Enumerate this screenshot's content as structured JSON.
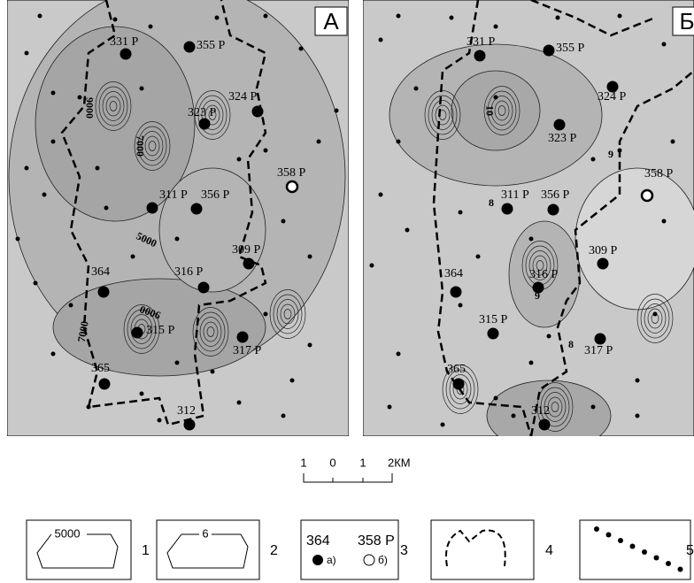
{
  "panels": [
    {
      "letter": "А",
      "wells": [
        "331 P",
        "355 P",
        "324 P",
        "323 P",
        "358 P",
        "311 P",
        "356 P",
        "309 P",
        "364",
        "316 P",
        "315 P",
        "317 P",
        "365",
        "312"
      ],
      "contour_labels": [
        "9000",
        "7000",
        "5000",
        "9000",
        "7000"
      ]
    },
    {
      "letter": "Б",
      "wells": [
        "331 P",
        "355 P",
        "324 P",
        "323 P",
        "358 P",
        "311 P",
        "356 P",
        "309 P",
        "364",
        "316 P",
        "315 P",
        "317 P",
        "365",
        "312"
      ],
      "contour_labels": [
        "10",
        "9",
        "8",
        "9",
        "8"
      ]
    }
  ],
  "scale": {
    "ticks": [
      "1",
      "0",
      "1",
      "2КМ"
    ]
  },
  "legend": [
    {
      "sample": "5000",
      "number": "1"
    },
    {
      "sample": "6",
      "number": "2"
    },
    {
      "sample": "364",
      "sample2": "358 Р",
      "markers": [
        "а)",
        "б)"
      ],
      "number": "3"
    },
    {
      "number": "4"
    },
    {
      "number": "5"
    }
  ]
}
